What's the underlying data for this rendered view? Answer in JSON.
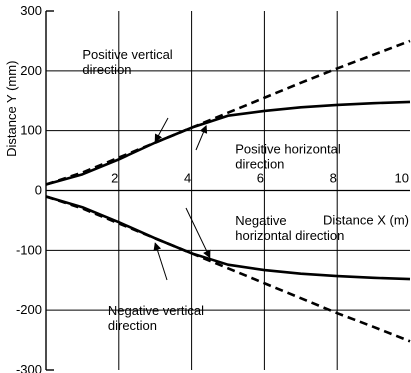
{
  "chart_data": {
    "type": "line",
    "xlabel": "Distance X (m)",
    "ylabel": "Distance Y (mm)",
    "xlim": [
      0,
      10
    ],
    "ylim": [
      -300,
      300
    ],
    "x_ticks": [
      "2",
      "4",
      "6",
      "8",
      "10"
    ],
    "y_ticks": [
      "300",
      "200",
      "100",
      "0",
      "-100",
      "-200",
      "-300"
    ],
    "grid": true,
    "series": [
      {
        "name": "Positive vertical direction",
        "style": "dashed",
        "x": [
          0,
          1,
          2,
          3,
          4,
          5,
          6,
          7,
          8,
          9,
          10
        ],
        "y": [
          10,
          30,
          55,
          80,
          105,
          130,
          155,
          180,
          204,
          227,
          250
        ]
      },
      {
        "name": "Positive horizontal direction",
        "style": "solid",
        "x": [
          0,
          1,
          2,
          3,
          4,
          5,
          6,
          7,
          8,
          9,
          10
        ],
        "y": [
          10,
          27,
          52,
          80,
          105,
          125,
          133,
          139,
          143,
          146,
          148
        ]
      },
      {
        "name": "Negative horizontal direction",
        "style": "solid",
        "x": [
          0,
          1,
          2,
          3,
          4,
          5,
          6,
          7,
          8,
          9,
          10
        ],
        "y": [
          -10,
          -28,
          -53,
          -80,
          -105,
          -124,
          -133,
          -139,
          -143,
          -146,
          -148
        ]
      },
      {
        "name": "Negative vertical direction",
        "style": "dashed",
        "x": [
          0,
          1,
          2,
          3,
          4,
          5,
          6,
          7,
          8,
          9,
          10
        ],
        "y": [
          -10,
          -30,
          -55,
          -80,
          -105,
          -130,
          -155,
          -180,
          -205,
          -228,
          -252
        ]
      }
    ],
    "annotations": [
      {
        "id": "pos_vert",
        "lines": [
          "Positive vertical",
          "direction"
        ],
        "x": 1.0,
        "y": 220,
        "arrow_to": [
          3.0,
          82
        ]
      },
      {
        "id": "pos_horiz",
        "lines": [
          "Positive horizontal",
          "direction"
        ],
        "x": 5.2,
        "y": 62,
        "arrow_to": [
          4.4,
          108
        ]
      },
      {
        "id": "neg_horiz",
        "lines": [
          "Negative",
          "horizontal direction"
        ],
        "x": 5.2,
        "y": -58,
        "arrow_to": [
          4.5,
          -112
        ]
      },
      {
        "id": "neg_vert",
        "lines": [
          "Negative vertical",
          "direction"
        ],
        "x": 1.7,
        "y": -208,
        "arrow_to": [
          3.0,
          -88
        ]
      }
    ]
  }
}
